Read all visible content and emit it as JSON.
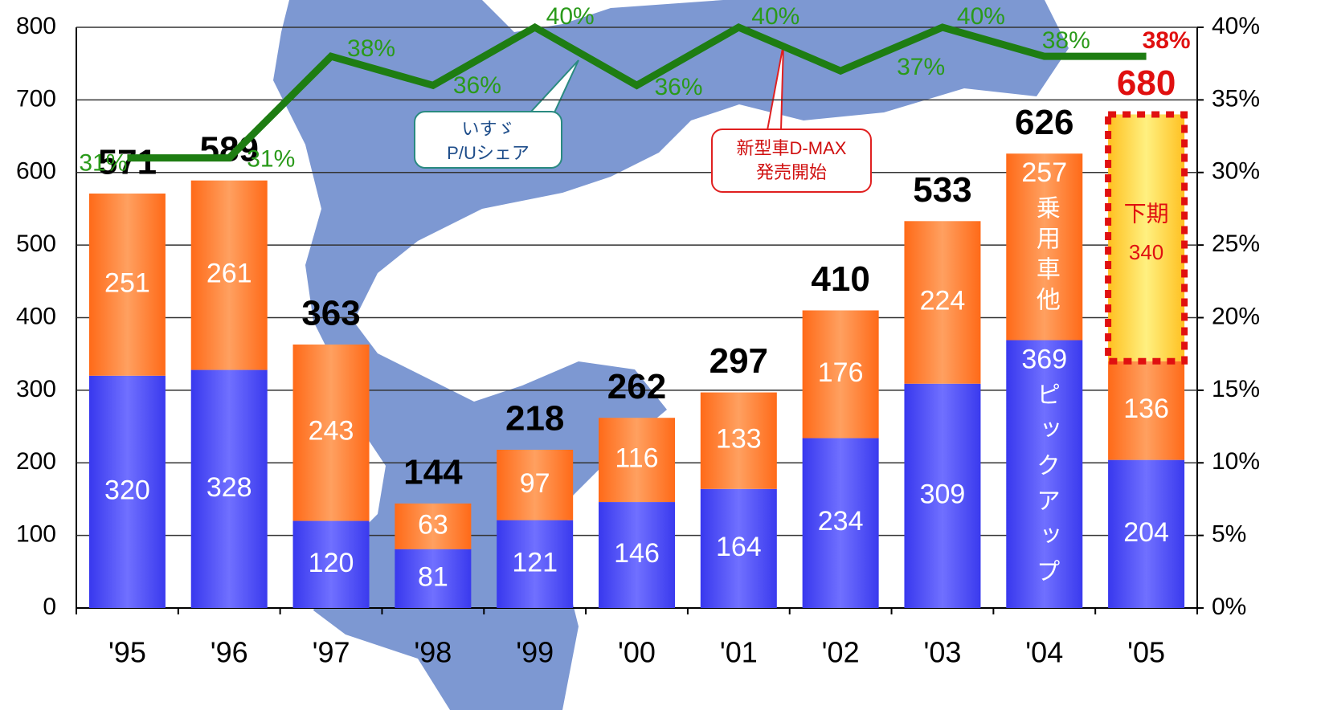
{
  "chart_data": {
    "type": "bar",
    "stacked": true,
    "categories": [
      "'95",
      "'96",
      "'97",
      "'98",
      "'99",
      "'00",
      "'01",
      "'02",
      "'03",
      "'04",
      "'05"
    ],
    "series": [
      {
        "name": "ピックアップ",
        "color": "#4b4bf2",
        "values": [
          320,
          328,
          120,
          81,
          121,
          146,
          164,
          234,
          309,
          369,
          204
        ]
      },
      {
        "name": "乗用車他",
        "color": "#ff7b2e",
        "values": [
          251,
          261,
          243,
          63,
          97,
          116,
          133,
          176,
          224,
          257,
          136
        ]
      },
      {
        "name": "下期",
        "color": "#ffd23f",
        "values": [
          null,
          null,
          null,
          null,
          null,
          null,
          null,
          null,
          null,
          null,
          340
        ]
      },
      {
        "name": "いすゞ\nP/Uシェア",
        "type": "line",
        "axis": "y2",
        "color": "#1e7d12",
        "values": [
          31,
          31,
          38,
          36,
          40,
          36,
          40,
          37,
          40,
          38,
          38
        ],
        "value_labels": [
          "31%",
          "31%",
          "38%",
          "36%",
          "40%",
          "36%",
          "40%",
          "37%",
          "40%",
          "38%",
          "38%"
        ]
      }
    ],
    "totals": [
      571,
      589,
      363,
      144,
      218,
      262,
      297,
      410,
      533,
      626,
      680
    ],
    "annotations": [
      {
        "text": "新型車D-MAX\n発売開始"
      }
    ],
    "ylim": [
      0,
      800
    ],
    "yticks": [
      0,
      100,
      200,
      300,
      400,
      500,
      600,
      700,
      800
    ],
    "y2lim": [
      0,
      40
    ],
    "y2ticks": [
      {
        "value": 0,
        "label": "0%"
      },
      {
        "value": 5,
        "label": "5%"
      },
      {
        "value": 10,
        "label": "10%"
      },
      {
        "value": 15,
        "label": "15%"
      },
      {
        "value": 20,
        "label": "20%"
      },
      {
        "value": 25,
        "label": "25%"
      },
      {
        "value": 30,
        "label": "30%"
      },
      {
        "value": 35,
        "label": "35%"
      },
      {
        "value": 40,
        "label": "40%"
      }
    ],
    "grid": true
  }
}
